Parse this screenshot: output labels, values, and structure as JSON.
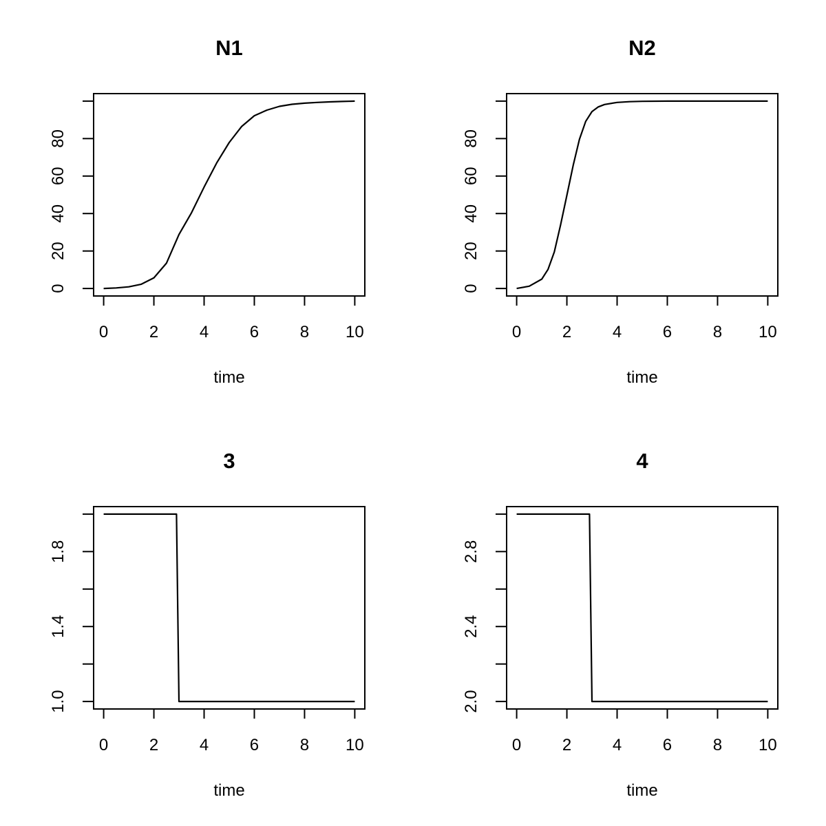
{
  "chart_data": [
    {
      "type": "line",
      "title": "N1",
      "xlabel": "time",
      "ylabel": "",
      "xlim": [
        0,
        10
      ],
      "ylim": [
        0,
        100
      ],
      "xticks": [
        0,
        2,
        4,
        6,
        8,
        10
      ],
      "yticks": [
        0,
        20,
        40,
        60,
        80,
        100
      ],
      "ytick_labels": [
        "0",
        "20",
        "40",
        "60",
        "80",
        ""
      ],
      "grid": false,
      "series": [
        {
          "x": [
            0,
            0.5,
            1,
            1.5,
            2,
            2.5,
            3,
            3.5,
            4,
            4.5,
            5,
            5.5,
            6,
            6.5,
            7,
            7.5,
            8,
            8.5,
            9,
            9.5,
            10
          ],
          "values": [
            0,
            0.3,
            0.9,
            2.3,
            5.7,
            13.5,
            28.8,
            40.5,
            54.1,
            67.0,
            77.9,
            86.5,
            92.2,
            95.2,
            97.2,
            98.3,
            98.9,
            99.3,
            99.6,
            99.8,
            100
          ]
        }
      ]
    },
    {
      "type": "line",
      "title": "N2",
      "xlabel": "time",
      "ylabel": "",
      "xlim": [
        0,
        10
      ],
      "ylim": [
        0,
        100
      ],
      "xticks": [
        0,
        2,
        4,
        6,
        8,
        10
      ],
      "yticks": [
        0,
        20,
        40,
        60,
        80,
        100
      ],
      "ytick_labels": [
        "0",
        "20",
        "40",
        "60",
        "80",
        ""
      ],
      "grid": false,
      "series": [
        {
          "x": [
            0,
            0.5,
            1,
            1.25,
            1.5,
            1.75,
            2,
            2.25,
            2.5,
            2.75,
            3,
            3.25,
            3.5,
            4,
            4.5,
            5,
            6,
            8,
            10
          ],
          "values": [
            0,
            1.2,
            5.0,
            10.2,
            19.5,
            33.9,
            49.8,
            65.7,
            79.6,
            89.2,
            94.4,
            96.9,
            98.2,
            99.3,
            99.7,
            99.9,
            100,
            100,
            100
          ]
        }
      ]
    },
    {
      "type": "line",
      "title": "3",
      "xlabel": "time",
      "ylabel": "",
      "xlim": [
        0,
        10
      ],
      "ylim": [
        1.0,
        2.0
      ],
      "xticks": [
        0,
        2,
        4,
        6,
        8,
        10
      ],
      "yticks": [
        1.0,
        1.2,
        1.4,
        1.6,
        1.8,
        2.0
      ],
      "ytick_labels": [
        "1.0",
        "",
        "1.4",
        "",
        "1.8",
        ""
      ],
      "grid": false,
      "series": [
        {
          "x": [
            0,
            2.9,
            3.0,
            10
          ],
          "values": [
            2.0,
            2.0,
            1.0,
            1.0
          ]
        }
      ]
    },
    {
      "type": "line",
      "title": "4",
      "xlabel": "time",
      "ylabel": "",
      "xlim": [
        0,
        10
      ],
      "ylim": [
        2.0,
        3.0
      ],
      "xticks": [
        0,
        2,
        4,
        6,
        8,
        10
      ],
      "yticks": [
        2.0,
        2.2,
        2.4,
        2.6,
        2.8,
        3.0
      ],
      "ytick_labels": [
        "2.0",
        "",
        "2.4",
        "",
        "2.8",
        ""
      ],
      "grid": false,
      "series": [
        {
          "x": [
            0,
            2.9,
            3.0,
            10
          ],
          "values": [
            3.0,
            3.0,
            2.0,
            2.0
          ]
        }
      ]
    }
  ]
}
